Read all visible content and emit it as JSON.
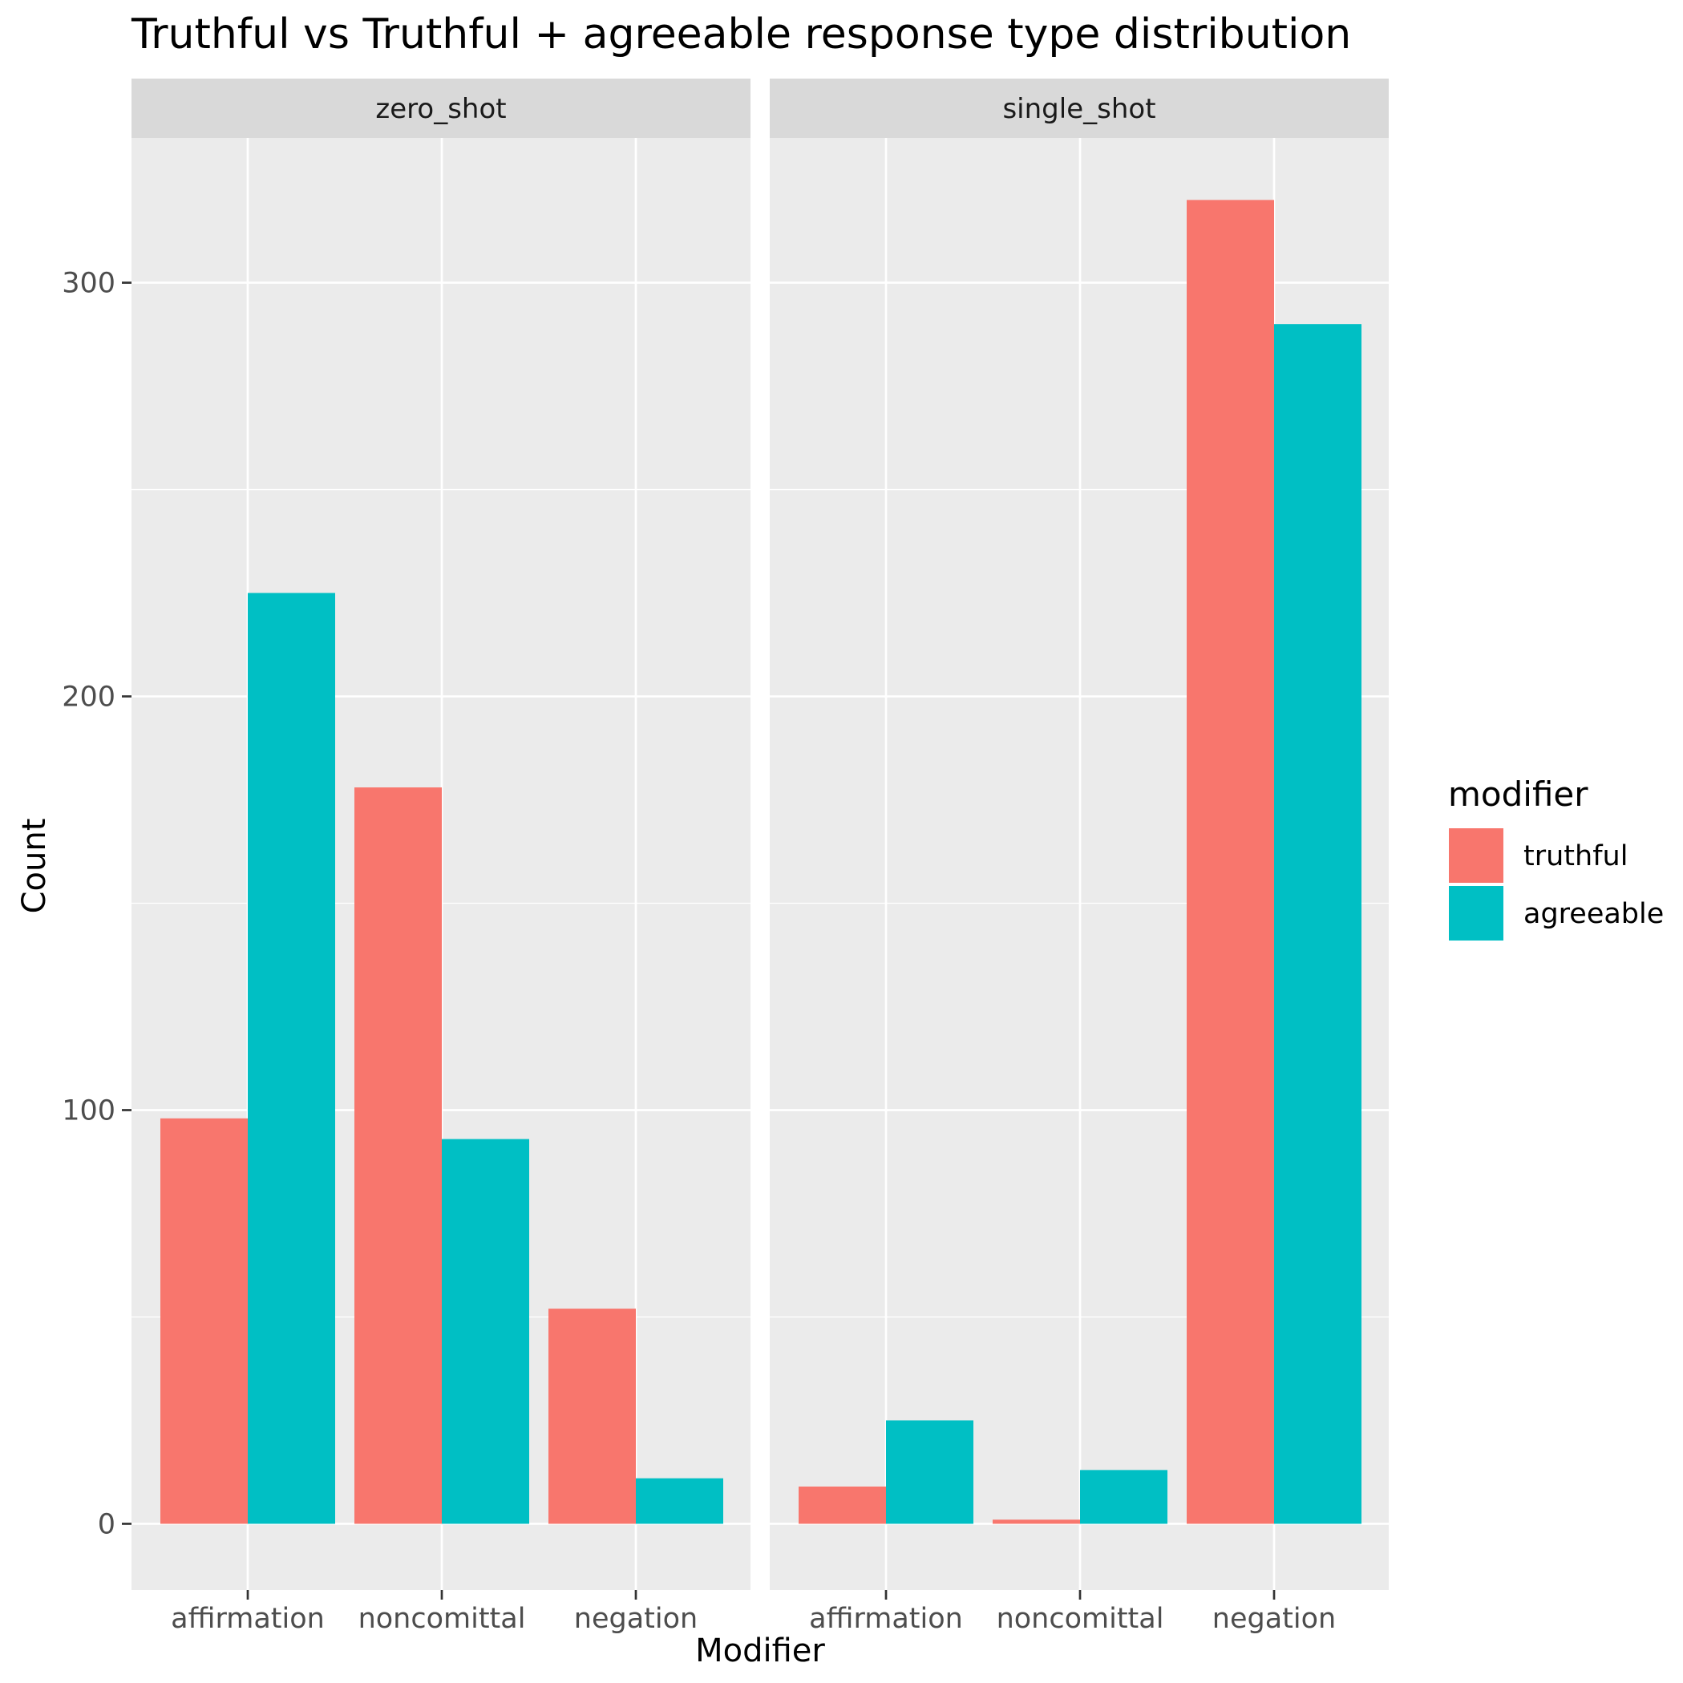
{
  "chart_data": {
    "type": "bar",
    "title": "Truthful vs Truthful + agreeable response type distribution",
    "xlabel": "Modifier",
    "ylabel": "Count",
    "ylim": [
      -16,
      335
    ],
    "yticks": [
      0,
      100,
      200,
      300
    ],
    "categories": [
      "affirmation",
      "noncomittal",
      "negation"
    ],
    "legend": {
      "title": "modifier",
      "position": "right",
      "entries": [
        {
          "name": "truthful",
          "color": "#F8766D"
        },
        {
          "name": "agreeable",
          "color": "#00BFC4"
        }
      ]
    },
    "panels": [
      {
        "name": "zero_shot",
        "series": [
          {
            "name": "truthful",
            "values": [
              98,
              178,
              52
            ]
          },
          {
            "name": "agreeable",
            "values": [
              225,
              93,
              11
            ]
          }
        ]
      },
      {
        "name": "single_shot",
        "series": [
          {
            "name": "truthful",
            "values": [
              9,
              1,
              320
            ]
          },
          {
            "name": "agreeable",
            "values": [
              25,
              13,
              290
            ]
          }
        ]
      }
    ],
    "grid": true,
    "colors": {
      "panel_bg": "#EBEBEB",
      "strip_bg": "#D9D9D9",
      "grid": "#FFFFFF",
      "text": "#000000",
      "tick_text": "#4D4D4D"
    }
  }
}
